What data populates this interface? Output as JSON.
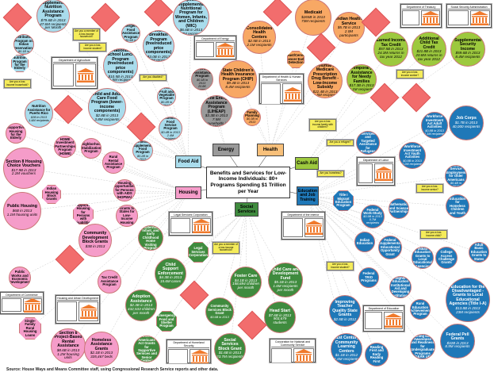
{
  "title": "Benefits and Services for Low-Income Individuals: 80+ Programs Spending $1 Trillion per Year",
  "source": "Source: House Ways and Means Committee staff, using Congressional Research Service reports and other data.",
  "colors": {
    "food": "#a9dcec",
    "energy": "#9a9a9a",
    "health": "#f8a864",
    "cash": "#9dc93e",
    "education": "#1f78b8",
    "housing": "#f59cc9",
    "social": "#3f8b3e",
    "note": "#f26d6d",
    "question": "#f5ec5a",
    "building": "#f07a2c"
  },
  "categories": [
    {
      "key": "energy",
      "label": "Energy"
    },
    {
      "key": "health",
      "label": "Health"
    },
    {
      "key": "food",
      "label": "Food Aid"
    },
    {
      "key": "cash",
      "label": "Cash Aid"
    },
    {
      "key": "housing",
      "label": "Housing"
    },
    {
      "key": "education",
      "label": "Education and Job Training"
    },
    {
      "key": "social",
      "label": "Social Services"
    }
  ],
  "programs": [
    {
      "cat": "food",
      "name": "Supplemental Nutrition Assistance Program",
      "amount": "$79.6B in 2013",
      "recipients": "47.6M recipients per Month"
    },
    {
      "cat": "food",
      "name": "Special Supplemental Nutritional Program for Women, Infants, and Children (WIC)",
      "amount": "$6.6B in 2013",
      "recipients": "8.7M recipients"
    },
    {
      "cat": "food",
      "name": "National School Lunch Program (free/reduced price components)",
      "amount": "$10.5B in 2013",
      "recipients": "21.5M recipients"
    },
    {
      "cat": "food",
      "name": "School Breakfast Program (free/reduced price components)",
      "amount": "$3.0B in 2013",
      "recipients": "11.2M recipients"
    },
    {
      "cat": "food",
      "name": "Child and Adult Care Food Program (lower-income components)",
      "amount": "$2.8B in 2013",
      "recipients": "3.8M recipients"
    },
    {
      "cat": "food",
      "name": "Nutrition Assistance for Puerto Rico",
      "amount": "$2B in 2013",
      "recipients": "1.4M recipients"
    },
    {
      "cat": "food",
      "name": "The Emergency Food Assistance Program",
      "amount": "$0.5B in 2013",
      "recipients": ""
    },
    {
      "cat": "food",
      "name": "Food Distribution Program on Indian Reservations",
      "amount": "$0.1B in 2013",
      "recipients": ""
    },
    {
      "cat": "food",
      "name": "Summer Food Service Program",
      "amount": "$0.4B in 2013",
      "recipients": "2.4M recipients"
    },
    {
      "cat": "food",
      "name": "Fresh Fruit and Vegetable Program",
      "amount": "$0.2B in 2013",
      "recipients": ""
    },
    {
      "cat": "food",
      "name": "Commodity Supplemental Food Program",
      "amount": "$0.2B in 2013",
      "recipients": ""
    },
    {
      "cat": "food",
      "name": "Nutrition Program for the Elderly",
      "amount": "",
      "recipients": ""
    },
    {
      "cat": "energy",
      "name": "Low-Income Home Energy Assistance Program (LIHEAP)",
      "amount": "$3.3B in 2013",
      "recipients": "7.5M households in 2012"
    },
    {
      "cat": "energy",
      "name": "Weatherization Assistance Program",
      "amount": "$0.1B in 2013",
      "recipients": "20.8K homes"
    },
    {
      "cat": "health",
      "name": "Medicaid",
      "amount": "$265B in 2013",
      "recipients": "73M recipients"
    },
    {
      "cat": "health",
      "name": "Consolidated Health Centers",
      "amount": "$2.5B in 2013",
      "recipients": "2.1M recipients"
    },
    {
      "cat": "health",
      "name": "State Children's Health Insurance Program (CHIP)",
      "amount": "$9.4B in 2013",
      "recipients": "8.4M recipients"
    },
    {
      "cat": "health",
      "name": "Indian Health Service",
      "amount": "$5.7B in 2013",
      "recipients": "2.0M participants"
    },
    {
      "cat": "health",
      "name": "Voluntary Medicare Prescription Drug Benefit - Low-Income Subsidy",
      "amount": "$22.4B in 2013",
      "recipients": "11.5M recipients"
    },
    {
      "cat": "health",
      "name": "Family Planning",
      "amount": "$0.3B in 2013",
      "recipients": ""
    },
    {
      "cat": "health",
      "name": "Breast/Cervical Cancer Early Detection",
      "amount": "",
      "recipients": ""
    },
    {
      "cat": "cash",
      "name": "Earned Income Tax Credit",
      "amount": "$57.5B in 2013",
      "recipients": "24.3M returns in tax year 2012"
    },
    {
      "cat": "cash",
      "name": "Additional Child Tax Credit",
      "amount": "$21.8B in 2013",
      "recipients": "20.8M returns in tax year 2012"
    },
    {
      "cat": "cash",
      "name": "Supplemental Security Income",
      "amount": "$59.6B in 2013",
      "recipients": "8.4M recipients"
    },
    {
      "cat": "cash",
      "name": "Temporary Assistance for Needy Families",
      "amount": "$17.3B in 2013",
      "recipients": "4.1M recipients"
    },
    {
      "cat": "education",
      "name": "Job Corps",
      "amount": "$1.7B in 2013",
      "recipients": "40,000 recipients"
    },
    {
      "cat": "education",
      "name": "Workforce Investment Act Adult Activities",
      "amount": "$0.8B in 2013",
      "recipients": "1.1M recipients"
    },
    {
      "cat": "education",
      "name": "Workforce Investment Act Youth Activities",
      "amount": "$0.8B in 2013",
      "recipients": "0.2M recipients"
    },
    {
      "cat": "education",
      "name": "Social Services and Targeted Assistance for Refugees",
      "amount": "$0.4B in 2013",
      "recipients": ""
    },
    {
      "cat": "education",
      "name": "Community Service Employment for Older Americans",
      "amount": "$0.4B in 2013",
      "recipients": ""
    },
    {
      "cat": "education",
      "name": "Education for the Disadvantaged - Grants to Local Educational Agencies (Title I-A)",
      "amount": "$13.8B in 2013",
      "recipients": "23M recipients"
    },
    {
      "cat": "education",
      "name": "Federal Pell Grants",
      "amount": "$32B in 2013",
      "recipients": "8.9M recipients"
    },
    {
      "cat": "education",
      "name": "21st Century Community Learning Centers",
      "amount": "$1.1B in 2012",
      "recipients": "1.6M recipients"
    },
    {
      "cat": "education",
      "name": "Improving Teacher Quality State Grants",
      "amount": "$2.5B in 2012",
      "recipients": ""
    },
    {
      "cat": "education",
      "name": "Federal Work-Study",
      "amount": "$0.9B in 2013",
      "recipients": "0.7M recipients"
    },
    {
      "cat": "education",
      "name": "Indian Education",
      "amount": "",
      "recipients": ""
    },
    {
      "cat": "education",
      "name": "Federal Supplemental Educational Opportunity Grant",
      "amount": "",
      "recipients": ""
    },
    {
      "cat": "education",
      "name": "Federal TRIO Programs",
      "amount": "",
      "recipients": ""
    },
    {
      "cat": "education",
      "name": "Gaining Early Awareness and Readiness for Undergraduate Programs (GEAR UP)",
      "amount": "",
      "recipients": ""
    },
    {
      "cat": "education",
      "name": "Reading First and Early Reading First",
      "amount": "",
      "recipients": ""
    },
    {
      "cat": "education",
      "name": "Education for Homeless Children and Youth",
      "amount": "",
      "recipients": ""
    },
    {
      "cat": "education",
      "name": "Mathematics and Science Partnerships",
      "amount": "",
      "recipients": ""
    },
    {
      "cat": "education",
      "name": "Adult Basic Education Grants to States",
      "amount": "",
      "recipients": ""
    },
    {
      "cat": "education",
      "name": "Indian Education Grants to Local Educational Agencies",
      "amount": "",
      "recipients": ""
    },
    {
      "cat": "education",
      "name": "College Access Challenge Grants",
      "amount": "",
      "recipients": ""
    },
    {
      "cat": "education",
      "name": "Higher Education Institutional Aid and Developing Institutions",
      "amount": "",
      "recipients": ""
    },
    {
      "cat": "education",
      "name": "Rural Education Achievement Program",
      "amount": "",
      "recipients": ""
    },
    {
      "cat": "education",
      "name": "Title I Migrant Education Program",
      "amount": "",
      "recipients": ""
    },
    {
      "cat": "housing",
      "name": "Section 8 Housing Choice Vouchers",
      "amount": "$17.9B in 2013",
      "recipients": "2.2M vouchers"
    },
    {
      "cat": "housing",
      "name": "Public Housing",
      "amount": "$6B in 2013",
      "recipients": "1.1M housing units"
    },
    {
      "cat": "housing",
      "name": "Community Development Block Grants",
      "amount": "$3B in 2013",
      "recipients": ""
    },
    {
      "cat": "housing",
      "name": "Section 8 Project-Based Rental Assistance",
      "amount": "$8.6B in 2013",
      "recipients": "1.2M housing units"
    },
    {
      "cat": "housing",
      "name": "Homeless Assistance Grants",
      "amount": "$2.1B in 2013",
      "recipients": "335,467 beds"
    },
    {
      "cat": "housing",
      "name": "HOME Investment Partnerships Program (HOME)",
      "amount": "",
      "recipients": ""
    },
    {
      "cat": "housing",
      "name": "Neighborhood Stabilization Program",
      "amount": "",
      "recipients": ""
    },
    {
      "cat": "housing",
      "name": "Rural Rental Assistance Program",
      "amount": "",
      "recipients": ""
    },
    {
      "cat": "housing",
      "name": "Housing Opportunities for Persons with AIDS (HOPWA)",
      "amount": "",
      "recipients": ""
    },
    {
      "cat": "housing",
      "name": "Supportive Housing for the Elderly",
      "amount": "",
      "recipients": ""
    },
    {
      "cat": "housing",
      "name": "Tax Credit Assistance Program",
      "amount": "",
      "recipients": ""
    },
    {
      "cat": "housing",
      "name": "Public Works and Economic Development",
      "amount": "",
      "recipients": ""
    },
    {
      "cat": "housing",
      "name": "Single-Family Rural Housing Loans",
      "amount": "",
      "recipients": ""
    },
    {
      "cat": "housing",
      "name": "Indian Housing Block Grants",
      "amount": "",
      "recipients": ""
    },
    {
      "cat": "housing",
      "name": "Supportive Housing for Persons with Disabilities",
      "amount": "",
      "recipients": ""
    },
    {
      "cat": "housing",
      "name": "Grants to States for Low-Income Housing",
      "amount": "",
      "recipients": ""
    },
    {
      "cat": "social",
      "name": "Child Support Enforcement",
      "amount": "$4.3B in 2013",
      "recipients": "15.6M cases"
    },
    {
      "cat": "social",
      "name": "Foster Care",
      "amount": "$4.1B in 2013",
      "recipients": "158,694 children per month"
    },
    {
      "cat": "social",
      "name": "Child Care and Development Fund",
      "amount": "$5.1B in 2013",
      "recipients": "1.6M recipients per month"
    },
    {
      "cat": "social",
      "name": "Head Start",
      "amount": "$7.6B in 2013",
      "recipients": "903,679 students"
    },
    {
      "cat": "social",
      "name": "Social Services Block Grant",
      "amount": "$1.6B in 2013",
      "recipients": "23.7M recipients"
    },
    {
      "cat": "social",
      "name": "Adoption Assistance",
      "amount": "$2.3B in 2013",
      "recipients": "432,533 children per month"
    },
    {
      "cat": "social",
      "name": "Emergency Food and Shelter Program",
      "amount": "",
      "recipients": ""
    },
    {
      "cat": "social",
      "name": "Community Services Block Grant",
      "amount": "$0.6B in 2013",
      "recipients": ""
    },
    {
      "cat": "social",
      "name": "Older Americans Act Grants for Supportive Services and Senior Centers",
      "amount": "",
      "recipients": ""
    },
    {
      "cat": "social",
      "name": "Maternal, Infant, and Early Childhood Home Visiting Program",
      "amount": "",
      "recipients": ""
    },
    {
      "cat": "social",
      "name": "Legal Services Corporation",
      "amount": "",
      "recipients": ""
    }
  ],
  "departments": [
    {
      "name": "Department of Agriculture"
    },
    {
      "name": "Department of Energy"
    },
    {
      "name": "Department of Health & Human Services"
    },
    {
      "name": "Department of Treasury"
    },
    {
      "name": "Social Security Administration"
    },
    {
      "name": "Department of Labor"
    },
    {
      "name": "Department of Education"
    },
    {
      "name": "Housing and Urban Development"
    },
    {
      "name": "Department of Commerce"
    },
    {
      "name": "Legal Services Corporation"
    },
    {
      "name": "Department of the Interior"
    },
    {
      "name": "Department of Homeland Security"
    },
    {
      "name": "Corporation for National and Community Service"
    }
  ],
  "questions": [
    {
      "text": "Are you a member of a low-income household?"
    },
    {
      "text": "Are you a low-income student?"
    },
    {
      "text": "Are you homeless?"
    },
    {
      "text": "Are you disabled?"
    },
    {
      "text": "Are you a low-income family with children?"
    },
    {
      "text": "Are you a low-income worker?"
    },
    {
      "text": "Are you a refugee?"
    },
    {
      "text": "Are you a low-income senior?"
    },
    {
      "text": "Are you a low-income student?"
    },
    {
      "text": "Are you a low-income child?"
    },
    {
      "text": "Are you a low-income household?"
    },
    {
      "text": "Are you a member of a low-income household?"
    }
  ]
}
